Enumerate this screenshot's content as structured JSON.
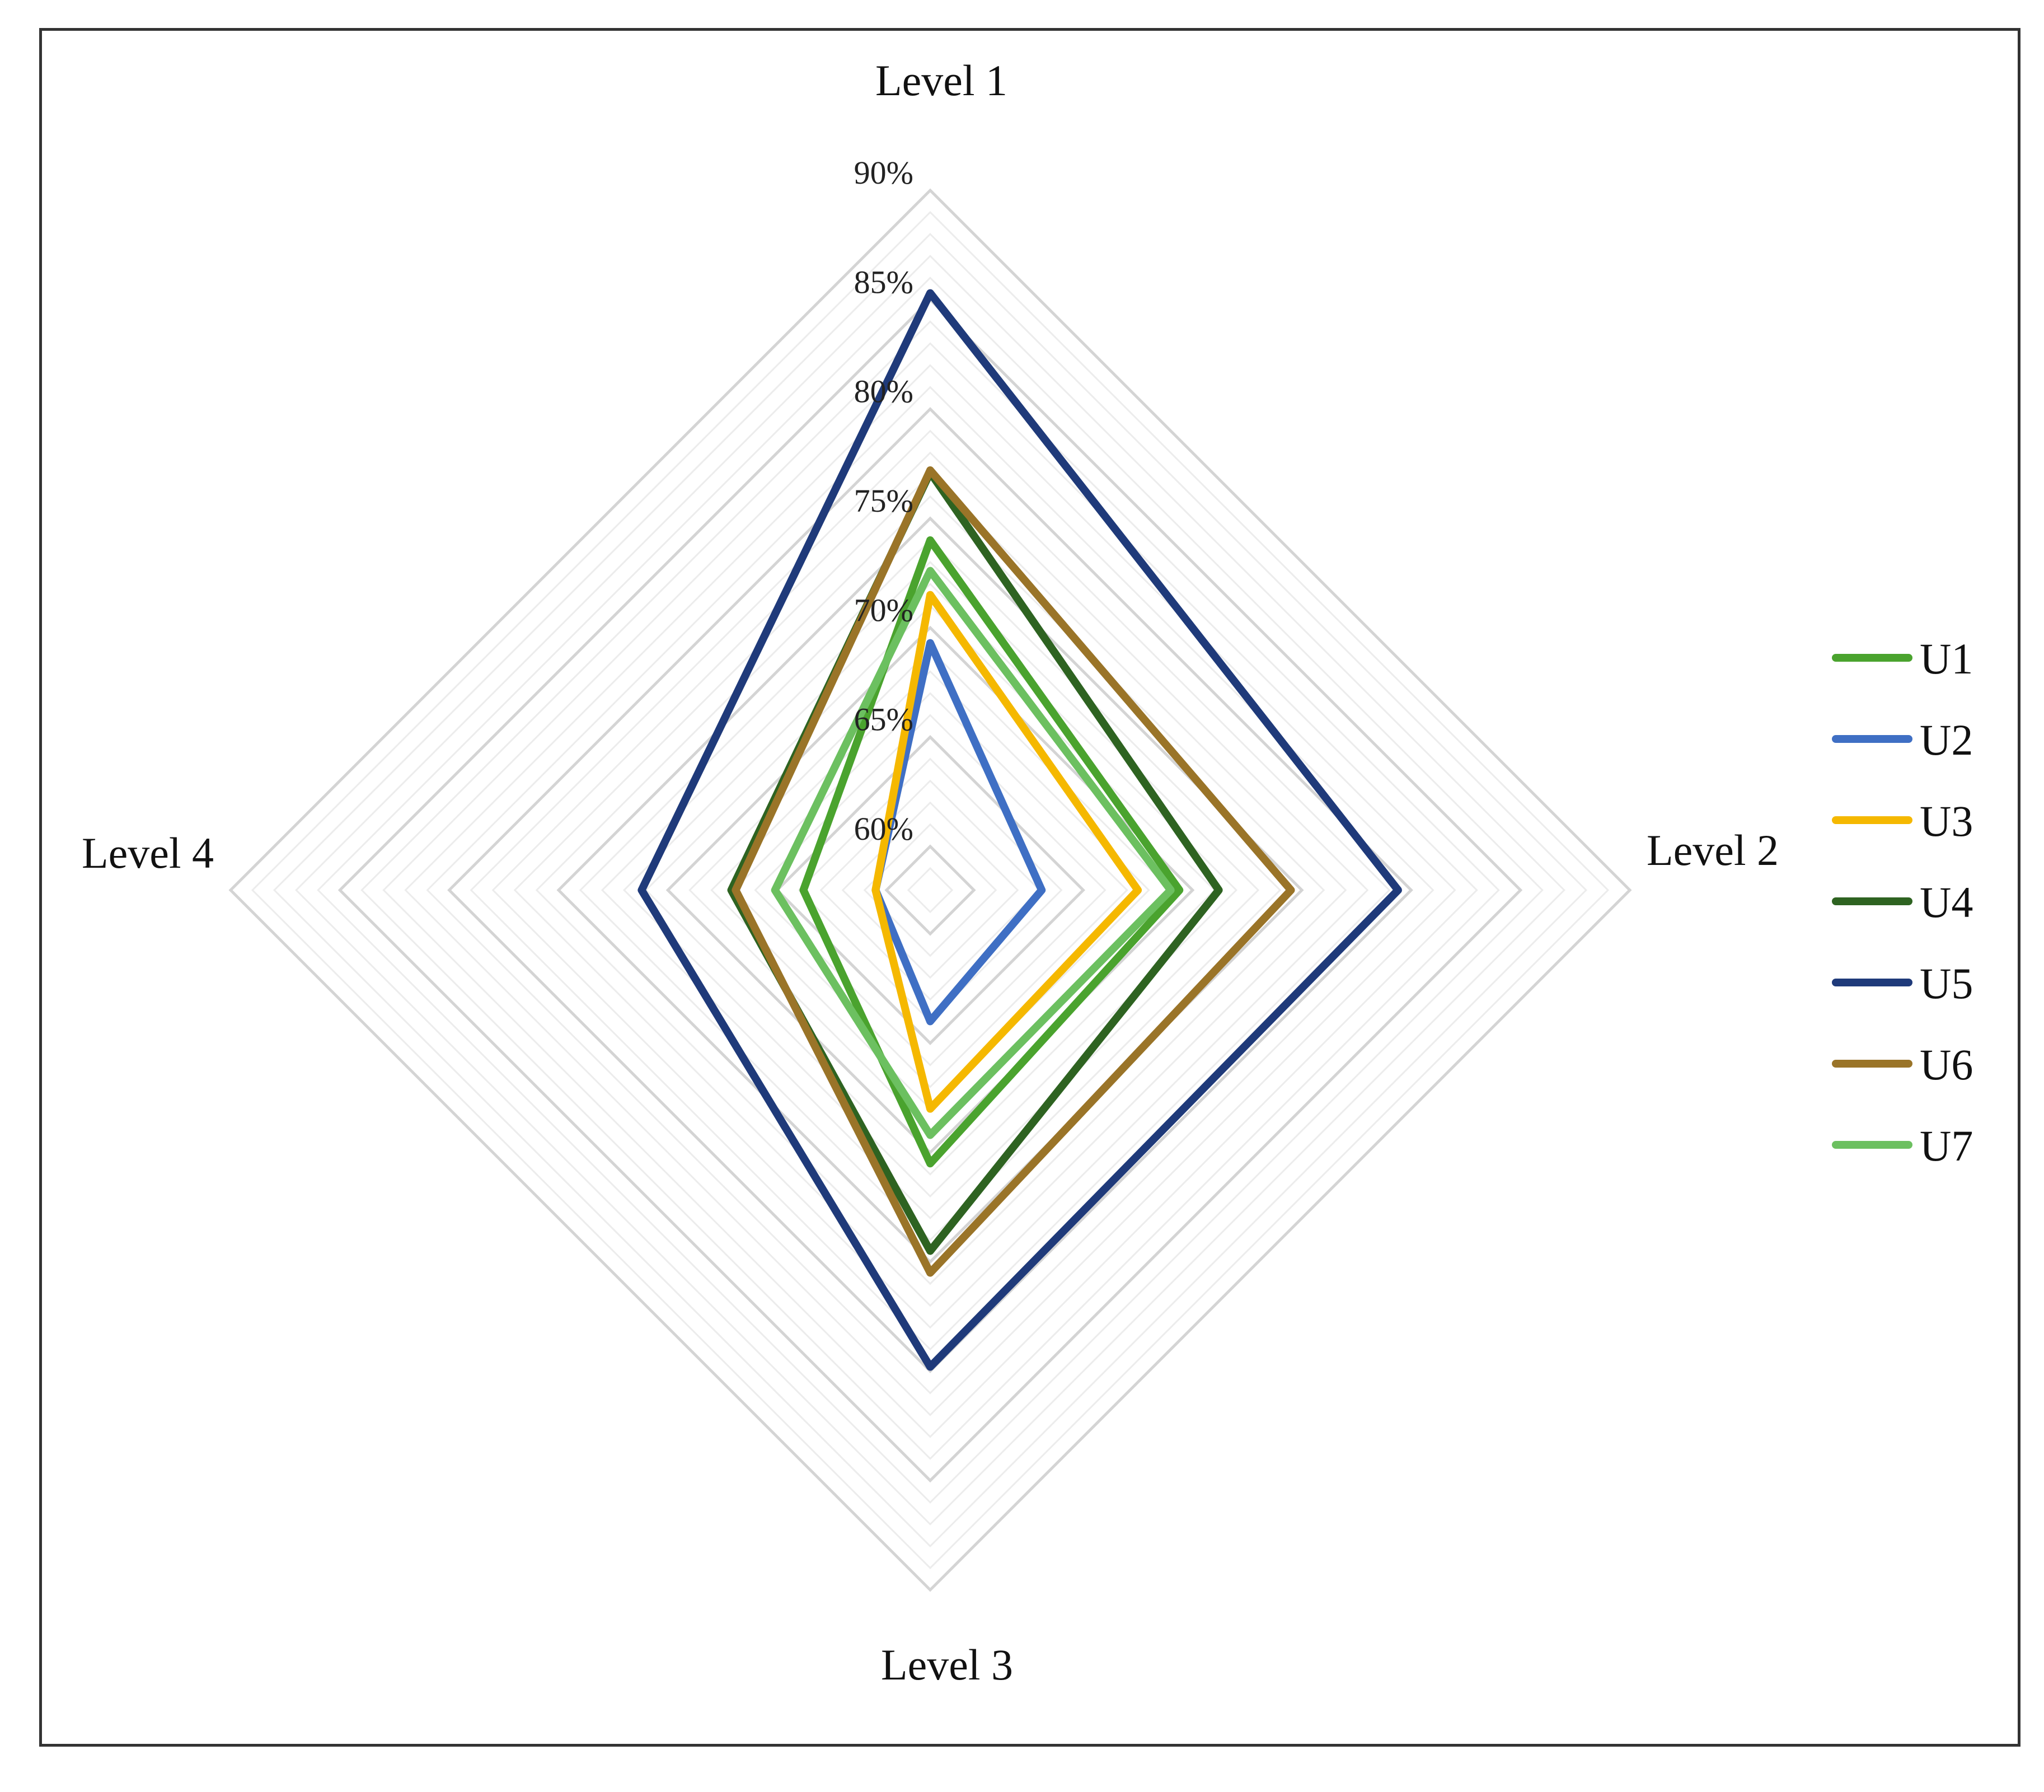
{
  "chart_data": {
    "type": "radar",
    "axes": [
      "Level 1",
      "Level 2",
      "Level 3",
      "Level 4"
    ],
    "rmin": 0.58,
    "rmax": 0.9,
    "tick_labels": [
      "60%",
      "65%",
      "70%",
      "75%",
      "80%",
      "85%",
      "90%"
    ],
    "tick_values": [
      0.6,
      0.65,
      0.7,
      0.75,
      0.8,
      0.85,
      0.9
    ],
    "grid": true,
    "legend": "right",
    "series": [
      {
        "name": "U1",
        "color": "#4aa32e",
        "values": [
          0.74,
          0.694,
          0.705,
          0.638
        ]
      },
      {
        "name": "U2",
        "color": "#3f6fc4",
        "values": [
          0.693,
          0.631,
          0.64,
          0.605
        ]
      },
      {
        "name": "U3",
        "color": "#f5b800",
        "values": [
          0.715,
          0.675,
          0.68,
          0.605
        ]
      },
      {
        "name": "U4",
        "color": "#2e6321",
        "values": [
          0.771,
          0.712,
          0.745,
          0.671
        ]
      },
      {
        "name": "U5",
        "color": "#1f3a7a",
        "values": [
          0.853,
          0.794,
          0.798,
          0.712
        ]
      },
      {
        "name": "U6",
        "color": "#9a7428",
        "values": [
          0.772,
          0.745,
          0.755,
          0.669
        ]
      },
      {
        "name": "U7",
        "color": "#6cc060",
        "values": [
          0.726,
          0.69,
          0.692,
          0.651
        ]
      }
    ]
  }
}
